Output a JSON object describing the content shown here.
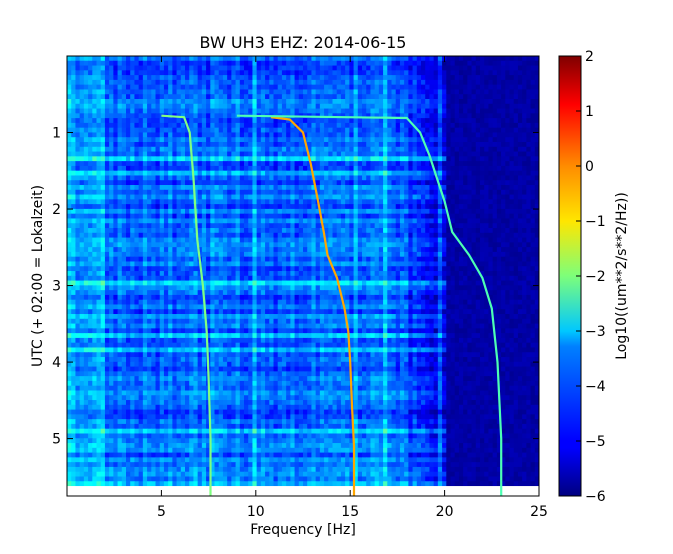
{
  "chart_data": {
    "type": "heatmap",
    "title": "BW UH3 EHZ: 2014-06-15",
    "xlabel": "Frequency [Hz]",
    "ylabel": "UTC (+ 02:00 = Lokalzeit)",
    "xlim": [
      0,
      25
    ],
    "ylim": [
      5.75,
      0
    ],
    "y_inverted": true,
    "x_ticks": [
      "5",
      "10",
      "15",
      "20",
      "25"
    ],
    "y_ticks": [
      "1",
      "2",
      "3",
      "4",
      "5"
    ],
    "colorbar": {
      "label": "Log10((um**2/s**2/Hz))",
      "range": [
        -6,
        2
      ],
      "ticks": [
        "2",
        "1",
        "0",
        "−1",
        "−2",
        "−3",
        "−4",
        "−5",
        "−6"
      ],
      "colormap": "jet"
    },
    "features": {
      "background_level": -4.2,
      "high_frequency_cutoff_hz": 19.9,
      "above_cutoff_level": -5.7,
      "frequency_sweep_tracks": [
        {
          "level": -2.0,
          "points": [
            [
              5.0,
              0.78
            ],
            [
              6.2,
              0.8
            ],
            [
              6.5,
              1.0
            ],
            [
              6.7,
              1.6
            ],
            [
              6.9,
              2.4
            ],
            [
              7.2,
              3.0
            ],
            [
              7.4,
              3.6
            ],
            [
              7.5,
              4.2
            ],
            [
              7.6,
              5.0
            ],
            [
              7.6,
              5.75
            ]
          ]
        },
        {
          "level": -0.3,
          "points": [
            [
              10.8,
              0.8
            ],
            [
              11.8,
              0.83
            ],
            [
              12.5,
              1.0
            ],
            [
              12.9,
              1.4
            ],
            [
              13.3,
              1.9
            ],
            [
              13.6,
              2.3
            ],
            [
              13.8,
              2.6
            ],
            [
              14.3,
              2.9
            ],
            [
              14.7,
              3.3
            ],
            [
              14.9,
              3.6
            ],
            [
              15.0,
              4.0
            ],
            [
              15.1,
              4.6
            ],
            [
              15.2,
              5.1
            ],
            [
              15.2,
              5.75
            ]
          ]
        },
        {
          "level": -2.4,
          "points": [
            [
              9.0,
              0.78
            ],
            [
              18.0,
              0.81
            ],
            [
              18.7,
              1.0
            ],
            [
              19.2,
              1.3
            ],
            [
              19.6,
              1.6
            ],
            [
              20.0,
              1.9
            ],
            [
              20.4,
              2.3
            ],
            [
              21.3,
              2.6
            ],
            [
              22.0,
              2.9
            ],
            [
              22.5,
              3.3
            ],
            [
              22.8,
              4.0
            ],
            [
              23.0,
              5.0
            ],
            [
              23.0,
              5.75
            ]
          ]
        }
      ]
    }
  }
}
